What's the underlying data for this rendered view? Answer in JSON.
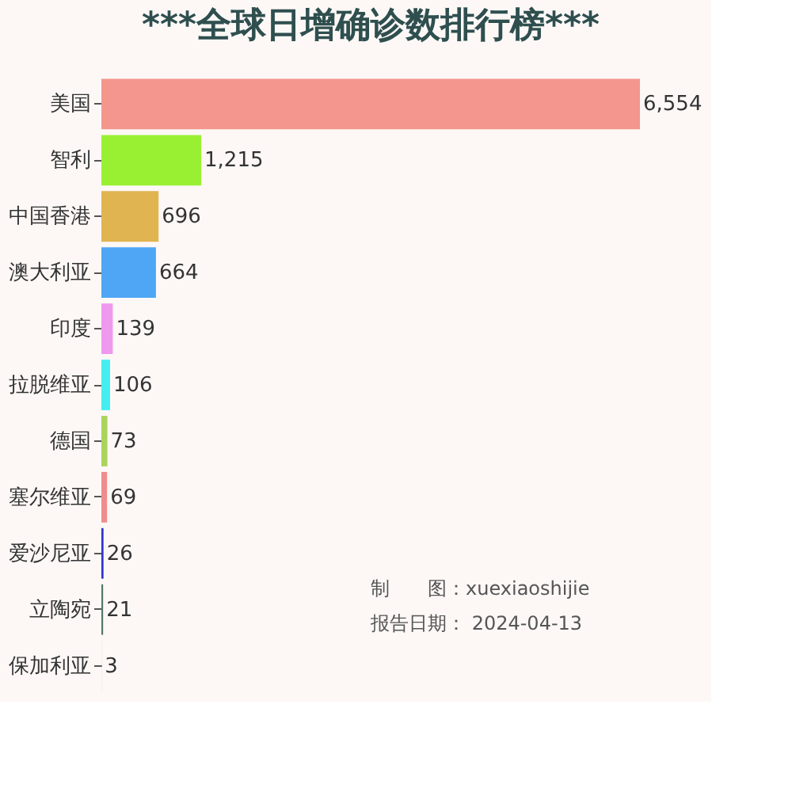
{
  "chart_data": {
    "type": "bar",
    "orientation": "horizontal",
    "title": "***全球日增确诊数排行榜***",
    "categories": [
      "美国",
      "智利",
      "中国香港",
      "澳大利亚",
      "印度",
      "拉脱维亚",
      "德国",
      "塞尔维亚",
      "爱沙尼亚",
      "立陶宛",
      "保加利亚"
    ],
    "values": [
      6554,
      1215,
      696,
      664,
      139,
      106,
      73,
      69,
      26,
      21,
      3
    ],
    "colors": [
      "#f4968e",
      "#99f033",
      "#e0b450",
      "#4ea6f5",
      "#ee99ee",
      "#44eef0",
      "#aad45a",
      "#f08c8c",
      "#3333cc",
      "#557766",
      "#f5d5c0"
    ],
    "value_labels": [
      "6,554",
      "1,215",
      "696",
      "664",
      "139",
      "106",
      "73",
      "69",
      "26",
      "21",
      "3"
    ],
    "annotations": [
      "制　　图：xuexiaoshijie",
      "报告日期：  2024-04-13"
    ]
  }
}
